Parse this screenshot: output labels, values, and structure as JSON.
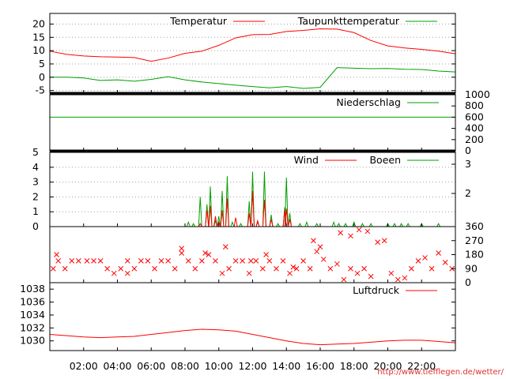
{
  "credit": "http://www.tiefflegen.de/wetter/",
  "colors": {
    "red": "#ff0000",
    "green": "#00a000",
    "grid": "#a0a0a0",
    "frame": "#000000",
    "credit": "#e03030"
  },
  "chart_data": [
    {
      "type": "line",
      "panel": "temperature",
      "x_unit": "hours",
      "ylim": [
        -6,
        24
      ],
      "yticks": [
        -5,
        0,
        5,
        10,
        15,
        20
      ],
      "grid": true,
      "legend_placement": "top-right",
      "series": [
        {
          "name": "Temperatur",
          "color": "#ff0000",
          "x": [
            0,
            1,
            2,
            3,
            4,
            5,
            6,
            7,
            8,
            9,
            10,
            11,
            12,
            13,
            14,
            15,
            16,
            17,
            18,
            19,
            20,
            21,
            22,
            23,
            24
          ],
          "values": [
            9.8,
            8.6,
            8.0,
            7.7,
            7.6,
            7.4,
            6.0,
            7.2,
            9.0,
            9.8,
            12.0,
            14.8,
            16.0,
            16.1,
            17.2,
            17.6,
            18.2,
            18.1,
            16.8,
            13.8,
            11.8,
            11.0,
            10.5,
            9.8,
            8.8
          ]
        },
        {
          "name": "Taupunkttemperatur",
          "color": "#00a000",
          "x": [
            0,
            1,
            2,
            3,
            4,
            5,
            6,
            7,
            8,
            9,
            10,
            11,
            12,
            13,
            14,
            15,
            16,
            17,
            18,
            19,
            20,
            21,
            22,
            23,
            24
          ],
          "values": [
            0.0,
            0.0,
            -0.3,
            -1.2,
            -1.0,
            -1.5,
            -0.8,
            0.2,
            -1.0,
            -1.8,
            -2.4,
            -3.0,
            -3.5,
            -4.0,
            -3.5,
            -4.2,
            -3.8,
            3.6,
            3.4,
            3.2,
            3.3,
            3.0,
            2.9,
            2.3,
            2.0
          ]
        }
      ]
    },
    {
      "type": "line",
      "panel": "precipitation",
      "ylim": [
        0,
        1000
      ],
      "yticks": [
        0,
        200,
        400,
        600,
        800,
        1000
      ],
      "series": [
        {
          "name": "Niederschlag",
          "color": "#00a000",
          "x": [
            0,
            24
          ],
          "values": [
            600,
            600
          ]
        }
      ]
    },
    {
      "type": "bar",
      "panel": "wind",
      "ylim": [
        0,
        5
      ],
      "yticks": [
        0,
        1,
        2,
        3,
        4,
        5
      ],
      "y2ticks": [
        2,
        3
      ],
      "grid": true,
      "series": [
        {
          "name": "Wind",
          "color": "#ff0000",
          "x": [
            8.9,
            9.3,
            9.5,
            9.8,
            10.0,
            10.2,
            10.5,
            11.0,
            11.8,
            12.0,
            12.3,
            12.7,
            13.1,
            13.9,
            14.0,
            14.2
          ],
          "values": [
            0.2,
            1.1,
            1.4,
            0.7,
            0.3,
            1.1,
            1.9,
            0.6,
            0.9,
            2.4,
            0.4,
            1.8,
            0.5,
            1.1,
            1.2,
            0.5
          ]
        },
        {
          "name": "Boeen",
          "color": "#00a000",
          "x": [
            8.2,
            8.5,
            8.9,
            9.3,
            9.5,
            9.8,
            10.0,
            10.2,
            10.5,
            10.8,
            11.3,
            11.8,
            12.0,
            12.3,
            12.7,
            13.1,
            13.5,
            13.9,
            14.0,
            14.2,
            14.8,
            15.2,
            15.8,
            16.8,
            17.1,
            17.5,
            18.0,
            18.5,
            19.0,
            20.0,
            20.4,
            20.8,
            21.2,
            22.0,
            23.0
          ],
          "values": [
            0.3,
            0.2,
            2.0,
            1.5,
            2.7,
            0.4,
            0.7,
            2.4,
            3.4,
            0.3,
            0.2,
            1.7,
            3.7,
            0.3,
            3.7,
            0.8,
            0.2,
            1.3,
            3.3,
            0.9,
            0.2,
            0.3,
            0.2,
            0.3,
            0.2,
            0.2,
            0.3,
            0.2,
            0.2,
            0.2,
            0.2,
            0.2,
            0.2,
            0.2,
            0.2
          ]
        }
      ]
    },
    {
      "type": "scatter",
      "panel": "wind-direction",
      "ylim": [
        0,
        360
      ],
      "yticks": [
        0,
        90,
        180,
        270,
        360
      ],
      "series": [
        {
          "name": "",
          "color": "#ff0000",
          "x": [
            0.2,
            0.5,
            0.9,
            1.3,
            1.7,
            2.2,
            2.6,
            3.0,
            3.4,
            3.8,
            4.2,
            4.6,
            5.0,
            5.4,
            5.8,
            6.2,
            6.6,
            7.0,
            7.4,
            7.8,
            8.2,
            8.6,
            9.0,
            9.4,
            9.8,
            10.2,
            10.6,
            11.0,
            11.4,
            11.8,
            12.2,
            12.6,
            13.0,
            13.4,
            13.8,
            14.2,
            14.6,
            15.0,
            15.4,
            15.8,
            16.2,
            16.6,
            17.0,
            17.4,
            17.8,
            18.2,
            18.6,
            19.0,
            19.4,
            19.8,
            20.2,
            20.6,
            21.0,
            21.4,
            21.8,
            22.2,
            22.6,
            23.0,
            23.4,
            23.8,
            0.4,
            4.6,
            7.8,
            9.2,
            10.4,
            11.9,
            12.8,
            14.4,
            15.6,
            16.0,
            17.2,
            17.8,
            18.3,
            18.8
          ],
          "values": [
            90,
            140,
            90,
            140,
            140,
            140,
            140,
            140,
            90,
            60,
            90,
            140,
            90,
            140,
            140,
            90,
            140,
            140,
            90,
            190,
            140,
            90,
            140,
            180,
            140,
            60,
            90,
            140,
            140,
            60,
            140,
            90,
            140,
            90,
            140,
            60,
            90,
            140,
            90,
            200,
            150,
            90,
            120,
            20,
            90,
            60,
            90,
            40,
            260,
            270,
            60,
            20,
            30,
            90,
            140,
            160,
            90,
            190,
            130,
            90,
            180,
            60,
            220,
            190,
            230,
            140,
            180,
            100,
            270,
            230,
            320,
            300,
            340,
            330
          ]
        }
      ]
    },
    {
      "type": "line",
      "panel": "pressure",
      "ylim": [
        1028.5,
        1039
      ],
      "yticks": [
        1030,
        1032,
        1034,
        1036,
        1038
      ],
      "xticks": [
        "02:00",
        "04:00",
        "06:00",
        "08:00",
        "10:00",
        "12:00",
        "14:00",
        "16:00",
        "18:00",
        "20:00",
        "22:00"
      ],
      "xtick_hours": [
        2,
        4,
        6,
        8,
        10,
        12,
        14,
        16,
        18,
        20,
        22
      ],
      "series": [
        {
          "name": "Luftdruck",
          "color": "#ff0000",
          "x": [
            0,
            1,
            2,
            3,
            4,
            5,
            6,
            7,
            8,
            9,
            10,
            11,
            12,
            13,
            14,
            15,
            16,
            17,
            18,
            19,
            20,
            21,
            22,
            23,
            24
          ],
          "values": [
            1031.0,
            1030.8,
            1030.6,
            1030.5,
            1030.6,
            1030.7,
            1031.0,
            1031.3,
            1031.6,
            1031.8,
            1031.7,
            1031.5,
            1031.0,
            1030.5,
            1030.0,
            1029.6,
            1029.4,
            1029.5,
            1029.6,
            1029.8,
            1030.0,
            1030.1,
            1030.1,
            1029.9,
            1029.7
          ]
        }
      ]
    }
  ]
}
